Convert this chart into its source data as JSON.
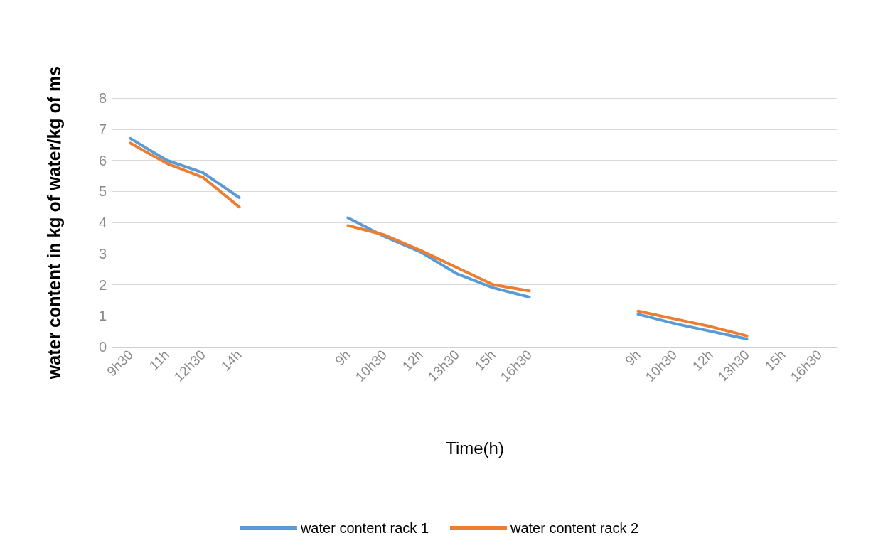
{
  "chart_data": {
    "type": "line",
    "xlabel": "Time(h)",
    "ylabel": "water content in kg of water/kg of ms",
    "categories": [
      "9h30",
      "11h",
      "12h30",
      "14h",
      null,
      null,
      "9h",
      "10h30",
      "12h",
      "13h30",
      "15h",
      "16h30",
      null,
      null,
      "9h",
      "10h30",
      "12h",
      "13h30",
      "15h",
      "16h30"
    ],
    "series": [
      {
        "name": "water content rack 1",
        "color": "#5b9bd5",
        "values": [
          6.7,
          6.0,
          5.6,
          4.8,
          null,
          null,
          4.15,
          3.55,
          3.05,
          2.35,
          1.9,
          1.6,
          null,
          null,
          1.05,
          0.75,
          0.5,
          0.25,
          null,
          null
        ]
      },
      {
        "name": "water content rack 2",
        "color": "#ed7d31",
        "values": [
          6.55,
          5.9,
          5.45,
          4.5,
          null,
          null,
          3.9,
          3.6,
          3.1,
          2.55,
          2.0,
          1.8,
          null,
          null,
          1.15,
          0.9,
          0.65,
          0.35,
          null,
          null
        ]
      }
    ],
    "ylim": [
      0,
      8
    ],
    "yticks": [
      0,
      1,
      2,
      3,
      4,
      5,
      6,
      7,
      8
    ],
    "grid": "y",
    "legend": "bottom",
    "marker": "none",
    "line_style": "solid"
  }
}
